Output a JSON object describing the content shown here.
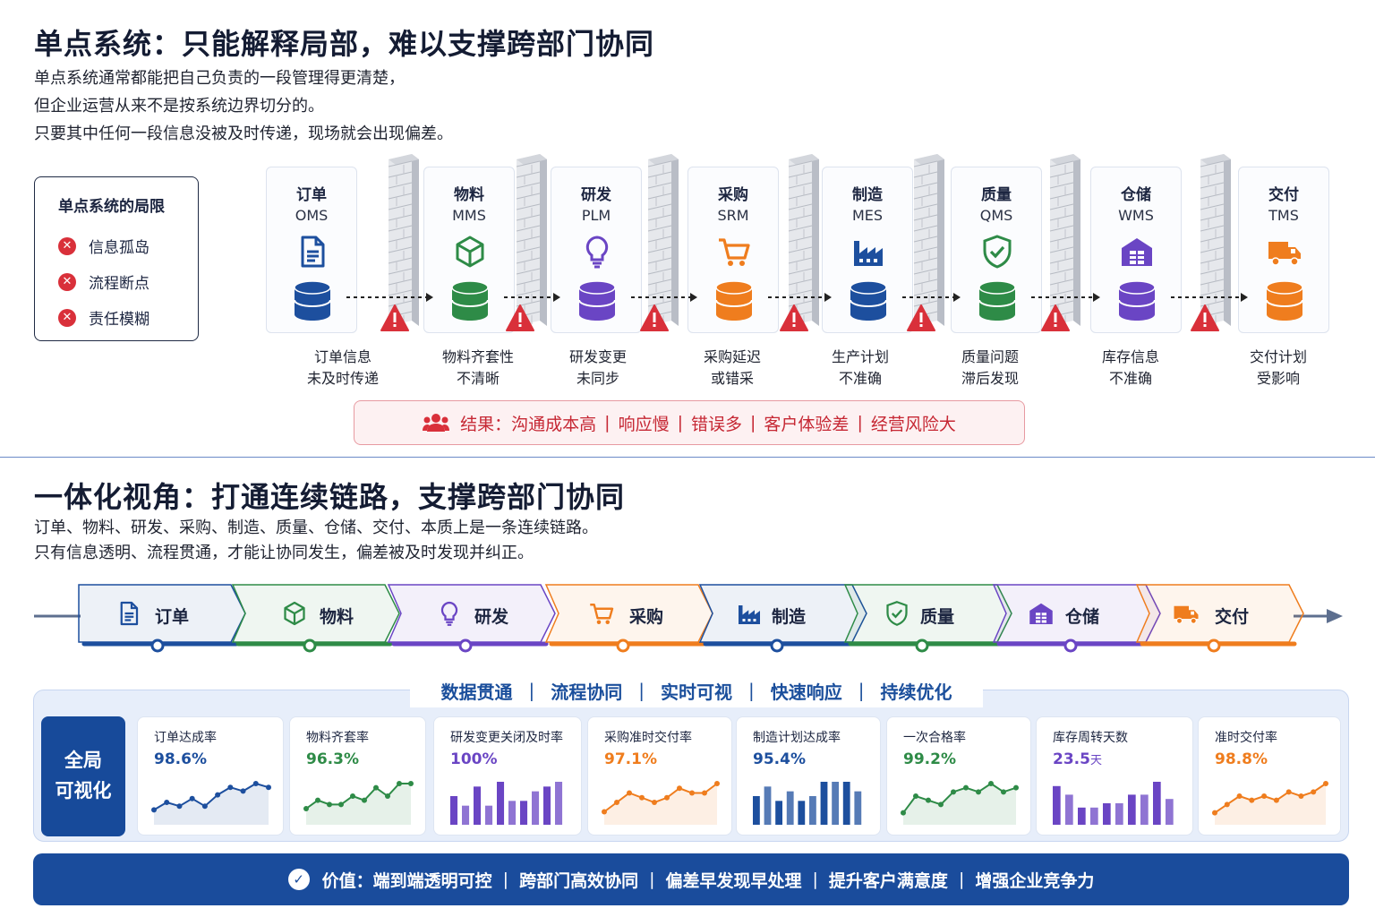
{
  "section1": {
    "title": "单点系统：只能解释局部，难以支撑跨部门协同",
    "desc": [
      "单点系统通常都能把自己负责的一段管理得更清楚，",
      "但企业运营从来不是按系统边界切分的。",
      "只要其中任何一段信息没被及时传递，现场就会出现偏差。"
    ],
    "limits": {
      "title": "单点系统的局限",
      "items": [
        "信息孤岛",
        "流程断点",
        "责任模糊"
      ]
    },
    "systems": [
      {
        "name": "订单",
        "abbr": "OMS",
        "icon": "document-icon",
        "color": "#1d4f9e",
        "issue": [
          "订单信息",
          "未及时传递"
        ]
      },
      {
        "name": "物料",
        "abbr": "MMS",
        "icon": "cube-icon",
        "color": "#2e8b47",
        "issue": [
          "物料齐套性",
          "不清晰"
        ]
      },
      {
        "name": "研发",
        "abbr": "PLM",
        "icon": "lightbulb-icon",
        "color": "#6a45c4",
        "issue": [
          "研发变更",
          "未同步"
        ]
      },
      {
        "name": "采购",
        "abbr": "SRM",
        "icon": "cart-icon",
        "color": "#ef7d1e",
        "issue": [
          "采购延迟",
          "或错采"
        ]
      },
      {
        "name": "制造",
        "abbr": "MES",
        "icon": "factory-icon",
        "color": "#1d4f9e",
        "issue": [
          "生产计划",
          "不准确"
        ]
      },
      {
        "name": "质量",
        "abbr": "QMS",
        "icon": "shield-check-icon",
        "color": "#2e8b47",
        "issue": [
          "质量问题",
          "滞后发现"
        ]
      },
      {
        "name": "仓储",
        "abbr": "WMS",
        "icon": "warehouse-icon",
        "color": "#6a45c4",
        "issue": [
          "库存信息",
          "不准确"
        ]
      },
      {
        "name": "交付",
        "abbr": "TMS",
        "icon": "truck-icon",
        "color": "#ef7d1e",
        "issue": [
          "交付计划",
          "受影响"
        ]
      }
    ],
    "result": {
      "label": "结果：",
      "items": [
        "沟通成本高",
        "响应慢",
        "错误多",
        "客户体验差",
        "经营风险大"
      ]
    }
  },
  "section2": {
    "title": "一体化视角：打通连续链路，支撑跨部门协同",
    "desc": [
      "订单、物料、研发、采购、制造、质量、仓储、交付、本质上是一条连续链路。",
      "只有信息透明、流程贯通，才能让协同发生，偏差被及时发现并纠正。"
    ],
    "chain": [
      {
        "label": "订单",
        "icon": "document-icon",
        "color": "#1d4f9e"
      },
      {
        "label": "物料",
        "icon": "cube-icon",
        "color": "#2e8b47"
      },
      {
        "label": "研发",
        "icon": "lightbulb-icon",
        "color": "#6a45c4"
      },
      {
        "label": "采购",
        "icon": "cart-icon",
        "color": "#ef7d1e"
      },
      {
        "label": "制造",
        "icon": "factory-icon",
        "color": "#1d4f9e"
      },
      {
        "label": "质量",
        "icon": "shield-check-icon",
        "color": "#2e8b47"
      },
      {
        "label": "仓储",
        "icon": "warehouse-icon",
        "color": "#6a45c4"
      },
      {
        "label": "交付",
        "icon": "truck-icon",
        "color": "#ef7d1e"
      }
    ],
    "pillars": [
      "数据贯通",
      "流程协同",
      "实时可视",
      "快速响应",
      "持续优化"
    ],
    "global_label": [
      "全局",
      "可视化"
    ],
    "kpis": [
      {
        "name": "订单达成率",
        "value": "98.6%",
        "unit": "",
        "type": "line",
        "color": "#1d4f9e",
        "series": [
          3,
          5,
          4,
          6,
          4,
          7,
          9,
          8,
          10,
          9
        ]
      },
      {
        "name": "物料齐套率",
        "value": "96.3%",
        "unit": "",
        "type": "line",
        "color": "#2e8b47",
        "series": [
          3,
          5,
          4,
          4,
          6,
          5,
          8,
          6,
          9,
          9
        ]
      },
      {
        "name": "研发变更关闭及时率",
        "value": "100%",
        "unit": "",
        "type": "bar",
        "color": "#6a45c4",
        "series": [
          6,
          4,
          8,
          4,
          9,
          5,
          5,
          7,
          8,
          9
        ]
      },
      {
        "name": "采购准时交付率",
        "value": "97.1%",
        "unit": "",
        "type": "line",
        "color": "#ef7d1e",
        "series": [
          2,
          4,
          6,
          5,
          4,
          5,
          7,
          6,
          6,
          8
        ]
      },
      {
        "name": "制造计划达成率",
        "value": "95.4%",
        "unit": "",
        "type": "bar",
        "color": "#1d4f9e",
        "series": [
          6,
          8,
          5,
          7,
          5,
          6,
          9,
          9,
          9,
          7
        ]
      },
      {
        "name": "一次合格率",
        "value": "99.2%",
        "unit": "",
        "type": "line",
        "color": "#2e8b47",
        "series": [
          2,
          6,
          5,
          4,
          7,
          8,
          7,
          9,
          7,
          8
        ]
      },
      {
        "name": "库存周转天数",
        "value": "23.5",
        "unit": "天",
        "type": "bar",
        "color": "#6a45c4",
        "series": [
          9,
          7,
          4,
          4,
          5,
          5,
          7,
          7,
          10,
          6
        ]
      },
      {
        "name": "准时交付率",
        "value": "98.8%",
        "unit": "",
        "type": "line",
        "color": "#ef7d1e",
        "series": [
          2,
          4,
          6,
          5,
          6,
          5,
          7,
          6,
          7,
          9
        ]
      }
    ],
    "value_bar": {
      "label": "价值：",
      "items": [
        "端到端透明可控",
        "跨部门高效协同",
        "偏差早发现早处理",
        "提升客户满意度",
        "增强企业竞争力"
      ]
    }
  }
}
